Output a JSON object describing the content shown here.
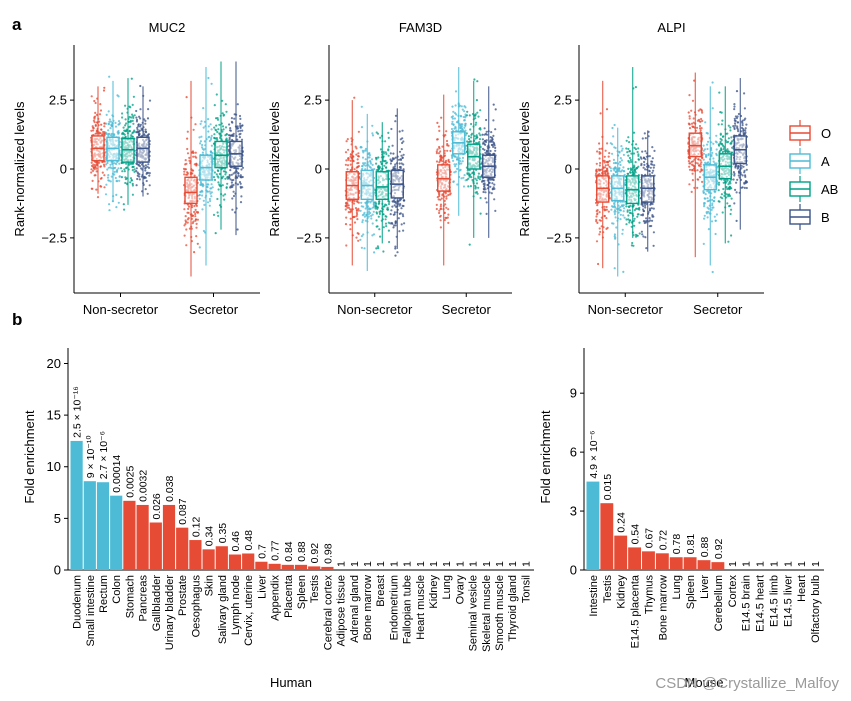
{
  "panel_a_label": "a",
  "panel_b_label": "b",
  "watermark": "CSDN @Crystallize_Malfoy",
  "chart_data": [
    {
      "type": "box",
      "title": "MUC2",
      "ylabel": "Rank-normalized levels",
      "ylim": [
        -4.5,
        4.5
      ],
      "yticks": [
        -2.5,
        0,
        2.5
      ],
      "ytick_labels": [
        "−2.5",
        "0",
        "2.5"
      ],
      "categories": [
        "Non-secretor",
        "Secretor"
      ],
      "groups": [
        "O",
        "A",
        "AB",
        "B"
      ],
      "colors": {
        "O": "#E64B35",
        "A": "#4DBBD5",
        "AB": "#00A087",
        "B": "#3C5488"
      },
      "boxes": {
        "Non-secretor": {
          "O": [
            0.3,
            0.75,
            1.2
          ],
          "A": [
            0.3,
            0.75,
            1.15
          ],
          "AB": [
            0.25,
            0.7,
            1.1
          ],
          "B": [
            0.25,
            0.75,
            1.15
          ]
        },
        "Secretor": {
          "O": [
            -1.25,
            -0.85,
            -0.3
          ],
          "A": [
            -0.4,
            0.05,
            0.5
          ],
          "AB": [
            0.05,
            0.5,
            1.0
          ],
          "B": [
            0.1,
            0.55,
            1.0
          ]
        }
      },
      "spread": {
        "Non-secretor": {
          "O": [
            -1.2,
            3.3
          ],
          "A": [
            -1.5,
            3.5
          ],
          "AB": [
            -1.6,
            3.6
          ],
          "B": [
            -1.3,
            3.3
          ]
        },
        "Secretor": {
          "O": [
            -4.2,
            3.5
          ],
          "A": [
            -3.8,
            4.0
          ],
          "AB": [
            -2.5,
            4.2
          ],
          "B": [
            -2.7,
            4.2
          ]
        }
      }
    },
    {
      "type": "box",
      "title": "FAM3D",
      "ylabel": "Rank-normalized levels",
      "ylim": [
        -4.5,
        4.5
      ],
      "yticks": [
        -2.5,
        0,
        2.5
      ],
      "ytick_labels": [
        "−2.5",
        "0",
        "2.5"
      ],
      "categories": [
        "Non-secretor",
        "Secretor"
      ],
      "groups": [
        "O",
        "A",
        "AB",
        "B"
      ],
      "colors": {
        "O": "#E64B35",
        "A": "#4DBBD5",
        "AB": "#00A087",
        "B": "#3C5488"
      },
      "boxes": {
        "Non-secretor": {
          "O": [
            -1.1,
            -0.6,
            -0.1
          ],
          "A": [
            -1.1,
            -0.6,
            -0.05
          ],
          "AB": [
            -1.1,
            -0.65,
            -0.1
          ],
          "B": [
            -1.05,
            -0.55,
            -0.05
          ]
        },
        "Secretor": {
          "O": [
            -0.8,
            -0.35,
            0.15
          ],
          "A": [
            0.55,
            0.95,
            1.35
          ],
          "AB": [
            0.0,
            0.45,
            0.9
          ],
          "B": [
            -0.3,
            0.1,
            0.5
          ]
        }
      },
      "spread": {
        "Non-secretor": {
          "O": [
            -3.8,
            2.8
          ],
          "A": [
            -4.0,
            2.3
          ],
          "AB": [
            -3.0,
            2.0
          ],
          "B": [
            -3.2,
            2.5
          ]
        },
        "Secretor": {
          "O": [
            -3.8,
            3.0
          ],
          "A": [
            -2.0,
            4.0
          ],
          "AB": [
            -2.8,
            3.5
          ],
          "B": [
            -2.8,
            3.3
          ]
        }
      }
    },
    {
      "type": "box",
      "title": "ALPI",
      "ylabel": "Rank-normalized levels",
      "ylim": [
        -4.5,
        4.5
      ],
      "yticks": [
        -2.5,
        0,
        2.5
      ],
      "ytick_labels": [
        "−2.5",
        "0",
        "2.5"
      ],
      "categories": [
        "Non-secretor",
        "Secretor"
      ],
      "groups": [
        "O",
        "A",
        "AB",
        "B"
      ],
      "colors": {
        "O": "#E64B35",
        "A": "#4DBBD5",
        "AB": "#00A087",
        "B": "#3C5488"
      },
      "boxes": {
        "Non-secretor": {
          "O": [
            -1.2,
            -0.7,
            -0.25
          ],
          "A": [
            -1.15,
            -0.7,
            -0.25
          ],
          "AB": [
            -1.25,
            -0.75,
            -0.25
          ],
          "B": [
            -1.2,
            -0.7,
            -0.25
          ]
        },
        "Secretor": {
          "O": [
            0.45,
            0.85,
            1.3
          ],
          "A": [
            -0.75,
            -0.3,
            0.15
          ],
          "AB": [
            -0.35,
            0.1,
            0.55
          ],
          "B": [
            0.2,
            0.7,
            1.2
          ]
        }
      },
      "spread": {
        "Non-secretor": {
          "O": [
            -3.9,
            3.5
          ],
          "A": [
            -4.2,
            1.8
          ],
          "AB": [
            -2.8,
            4.0
          ],
          "B": [
            -3.3,
            1.7
          ]
        },
        "Secretor": {
          "O": [
            -3.5,
            3.8
          ],
          "A": [
            -3.8,
            3.3
          ],
          "AB": [
            -3.0,
            3.3
          ],
          "B": [
            -2.5,
            3.6
          ]
        }
      }
    },
    {
      "type": "bar",
      "xlabel": "Human",
      "ylabel": "Fold enrichment",
      "ylim": [
        0,
        21.5
      ],
      "yticks": [
        0,
        5,
        10,
        15,
        20
      ],
      "categories": [
        "Duodenum",
        "Small intestine",
        "Rectum",
        "Colon",
        "Stomach",
        "Pancreas",
        "Gallbladder",
        "Urinary bladder",
        "Prostate",
        "Oesophagus",
        "Skin",
        "Salivary gland",
        "Lymph node",
        "Cervix, uterine",
        "Liver",
        "Appendix",
        "Placenta",
        "Spleen",
        "Testis",
        "Cerebral cortex",
        "Adipose tissue",
        "Adrenal gland",
        "Bone marrow",
        "Breast",
        "Endometrium",
        "Fallopian tube",
        "Heart muscle",
        "Kidney",
        "Lung",
        "Ovary",
        "Seminal vesicle",
        "Skeletal muscle",
        "Smooth muscle",
        "Thyroid gland",
        "Tonsil"
      ],
      "values": [
        12.5,
        8.6,
        8.5,
        7.2,
        6.7,
        6.3,
        4.6,
        6.3,
        4.1,
        2.9,
        2.0,
        2.3,
        1.5,
        1.6,
        0.8,
        0.6,
        0.5,
        0.5,
        0.35,
        0.3,
        0,
        0,
        0,
        0,
        0,
        0,
        0,
        0,
        0,
        0,
        0,
        0,
        0,
        0,
        0
      ],
      "highlight_count": 4,
      "colors": {
        "highlight": "#4DBBD5",
        "other": "#E64B35"
      },
      "p_labels": [
        "2.5 × 10⁻¹⁶",
        "9 × 10⁻¹⁰",
        "2.7 × 10⁻⁶",
        "0.00014",
        "0.0025",
        "0.0032",
        "0.026",
        "0.038",
        "0.087",
        "0.12",
        "0.34",
        "0.35",
        "0.46",
        "0.48",
        "0.7",
        "0.77",
        "0.84",
        "0.88",
        "0.92",
        "0.98",
        "1",
        "1",
        "1",
        "1",
        "1",
        "1",
        "1",
        "1",
        "1",
        "1",
        "1",
        "1",
        "1",
        "1",
        "1"
      ]
    },
    {
      "type": "bar",
      "xlabel": "Mouse",
      "ylabel": "Fold enrichment",
      "ylim": [
        0,
        11.3
      ],
      "yticks": [
        0,
        3,
        6,
        9
      ],
      "categories": [
        "Intestine",
        "Testis",
        "Kidney",
        "E14.5 placenta",
        "Thymus",
        "Bone marrow",
        "Lung",
        "Spleen",
        "Liver",
        "Cerebellum",
        "Cortex",
        "E14.5 brain",
        "E14.5 heart",
        "E14.5 limb",
        "E14.5 liver",
        "Heart",
        "Olfactory bulb"
      ],
      "values": [
        4.5,
        3.4,
        1.75,
        1.15,
        0.95,
        0.85,
        0.65,
        0.65,
        0.5,
        0.4,
        0,
        0,
        0,
        0,
        0,
        0,
        0
      ],
      "highlight_count": 1,
      "colors": {
        "highlight": "#4DBBD5",
        "other": "#E64B35"
      },
      "p_labels": [
        "4.9 × 10⁻⁶",
        "0.015",
        "0.24",
        "0.54",
        "0.67",
        "0.72",
        "0.78",
        "0.81",
        "0.88",
        "0.92",
        "1",
        "1",
        "1",
        "1",
        "1",
        "1",
        "1"
      ]
    }
  ],
  "legend": {
    "items": [
      {
        "label": "O",
        "color": "#E64B35"
      },
      {
        "label": "A",
        "color": "#4DBBD5"
      },
      {
        "label": "AB",
        "color": "#00A087"
      },
      {
        "label": "B",
        "color": "#3C5488"
      }
    ]
  }
}
